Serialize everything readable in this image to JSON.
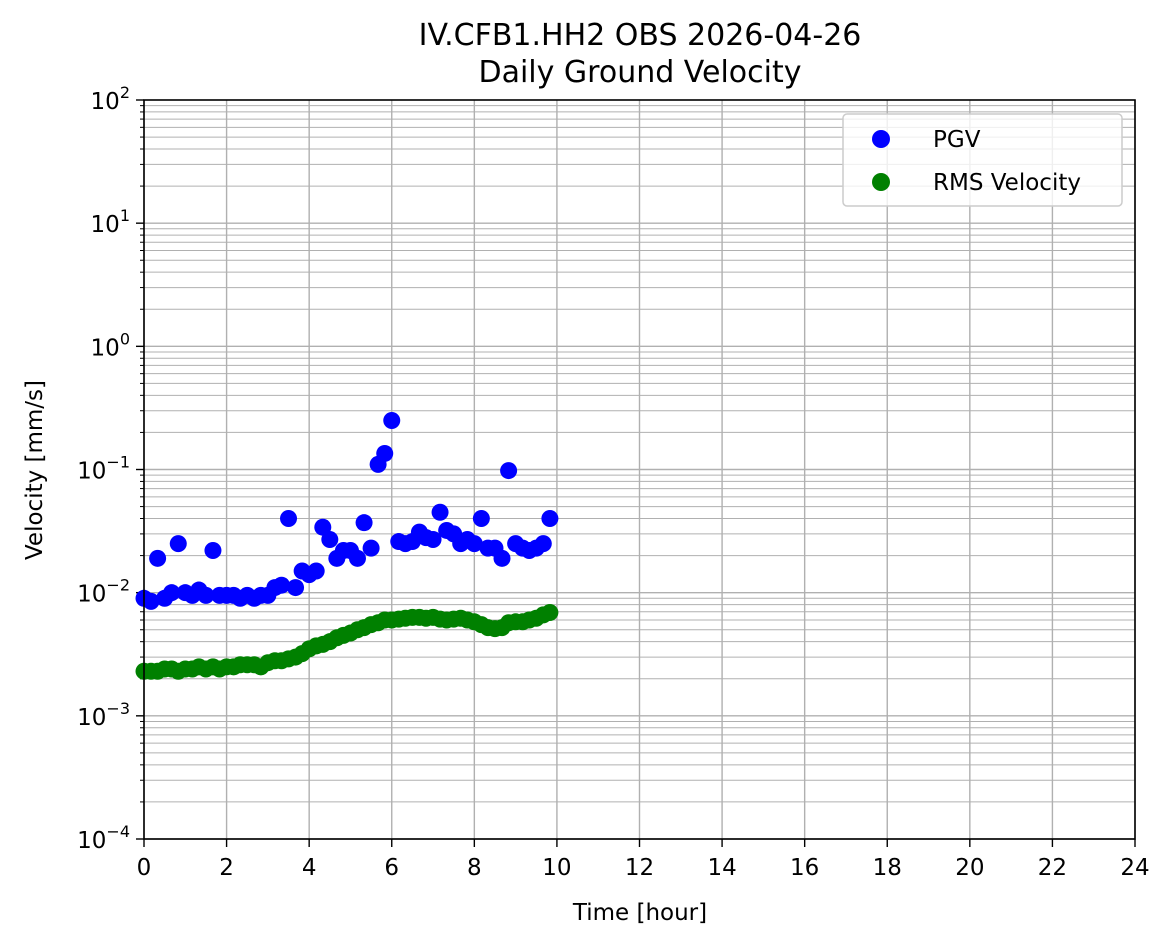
{
  "chart_data": {
    "type": "scatter",
    "title": "IV.CFB1.HH2 OBS 2026-04-26",
    "subtitle": "Daily Ground Velocity",
    "xlabel": "Time [hour]",
    "ylabel": "Velocity [mm/s]",
    "xlim": [
      0,
      24
    ],
    "ylim": [
      0.0001,
      100
    ],
    "yscale": "log",
    "grid": true,
    "legend_position": "top-right",
    "x_ticks": [
      "0",
      "2",
      "4",
      "6",
      "8",
      "10",
      "12",
      "14",
      "16",
      "18",
      "20",
      "22",
      "24"
    ],
    "y_ticks": [
      {
        "base": "10",
        "exp": "−4"
      },
      {
        "base": "10",
        "exp": "−3"
      },
      {
        "base": "10",
        "exp": "−2"
      },
      {
        "base": "10",
        "exp": "−1"
      },
      {
        "base": "10",
        "exp": "0"
      },
      {
        "base": "10",
        "exp": "1"
      },
      {
        "base": "10",
        "exp": "2"
      }
    ],
    "colors": {
      "PGV": "#0000ff",
      "RMS Velocity": "#008000",
      "grid": "#b0b0b0"
    },
    "series": [
      {
        "name": "PGV",
        "color": "#0000ff",
        "x": [
          0.0,
          0.17,
          0.33,
          0.5,
          0.67,
          0.83,
          1.0,
          1.17,
          1.33,
          1.5,
          1.67,
          1.83,
          2.0,
          2.17,
          2.33,
          2.5,
          2.67,
          2.83,
          3.0,
          3.17,
          3.33,
          3.5,
          3.67,
          3.83,
          4.0,
          4.17,
          4.33,
          4.5,
          4.67,
          4.83,
          5.0,
          5.17,
          5.33,
          5.5,
          5.67,
          5.83,
          6.0,
          6.17,
          6.33,
          6.5,
          6.67,
          6.83,
          7.0,
          7.17,
          7.33,
          7.5,
          7.67,
          7.83,
          8.0,
          8.17,
          8.33,
          8.5,
          8.67,
          8.83,
          9.0,
          9.17,
          9.33,
          9.5,
          9.67,
          9.83
        ],
        "y": [
          0.009,
          0.0085,
          0.019,
          0.009,
          0.01,
          0.025,
          0.01,
          0.0095,
          0.0105,
          0.0095,
          0.022,
          0.0095,
          0.0095,
          0.0095,
          0.009,
          0.0095,
          0.009,
          0.0095,
          0.0095,
          0.011,
          0.0115,
          0.04,
          0.011,
          0.015,
          0.014,
          0.015,
          0.034,
          0.027,
          0.019,
          0.022,
          0.022,
          0.019,
          0.037,
          0.023,
          0.11,
          0.135,
          0.25,
          0.026,
          0.025,
          0.026,
          0.031,
          0.028,
          0.027,
          0.045,
          0.032,
          0.03,
          0.025,
          0.027,
          0.025,
          0.04,
          0.023,
          0.023,
          0.019,
          0.098,
          0.025,
          0.023,
          0.022,
          0.023,
          0.025,
          0.04
        ]
      },
      {
        "name": "RMS Velocity",
        "color": "#008000",
        "x": [
          0.0,
          0.17,
          0.33,
          0.5,
          0.67,
          0.83,
          1.0,
          1.17,
          1.33,
          1.5,
          1.67,
          1.83,
          2.0,
          2.17,
          2.33,
          2.5,
          2.67,
          2.83,
          3.0,
          3.17,
          3.33,
          3.5,
          3.67,
          3.83,
          4.0,
          4.17,
          4.33,
          4.5,
          4.67,
          4.83,
          5.0,
          5.17,
          5.33,
          5.5,
          5.67,
          5.83,
          6.0,
          6.17,
          6.33,
          6.5,
          6.67,
          6.83,
          7.0,
          7.17,
          7.33,
          7.5,
          7.67,
          7.83,
          8.0,
          8.17,
          8.33,
          8.5,
          8.67,
          8.83,
          9.0,
          9.17,
          9.33,
          9.5,
          9.67,
          9.83
        ],
        "y": [
          0.0023,
          0.0023,
          0.0023,
          0.0024,
          0.0024,
          0.0023,
          0.0024,
          0.0024,
          0.0025,
          0.0024,
          0.0025,
          0.0024,
          0.0025,
          0.0025,
          0.0026,
          0.0026,
          0.0026,
          0.0025,
          0.0027,
          0.0028,
          0.0028,
          0.0029,
          0.003,
          0.0032,
          0.0035,
          0.0037,
          0.0038,
          0.004,
          0.0043,
          0.0045,
          0.0047,
          0.005,
          0.0052,
          0.0055,
          0.0057,
          0.006,
          0.006,
          0.0061,
          0.0062,
          0.0063,
          0.0063,
          0.0062,
          0.0063,
          0.0061,
          0.006,
          0.0061,
          0.0062,
          0.006,
          0.0058,
          0.0055,
          0.0052,
          0.0051,
          0.0052,
          0.0057,
          0.0058,
          0.0058,
          0.006,
          0.0062,
          0.0066,
          0.0069
        ]
      }
    ]
  }
}
